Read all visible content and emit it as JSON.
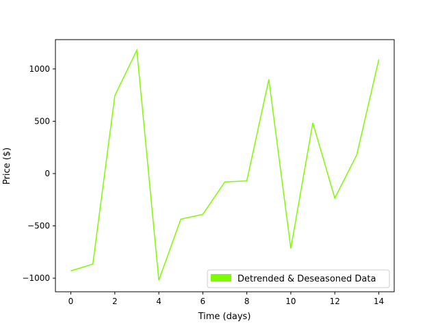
{
  "chart_data": {
    "type": "line",
    "title": "",
    "xlabel": "Time (days)",
    "ylabel": "Price ($)",
    "xlim": [
      -0.7,
      14.7
    ],
    "ylim": [
      -1130,
      1280
    ],
    "x_ticks": [
      0,
      2,
      4,
      6,
      8,
      10,
      12,
      14
    ],
    "y_ticks": [
      -1000,
      -500,
      0,
      500,
      1000
    ],
    "grid": false,
    "legend_position": "lower-right",
    "series": [
      {
        "name": "Detrended & Deseasoned Data",
        "color": "#7cfc00",
        "x": [
          0,
          1,
          2,
          3,
          4,
          5,
          6,
          7,
          8,
          9,
          10,
          11,
          12,
          13,
          14
        ],
        "y": [
          -930,
          -865,
          745,
          1180,
          -1020,
          -435,
          -390,
          -80,
          -70,
          900,
          -715,
          485,
          -235,
          180,
          1090
        ]
      }
    ]
  }
}
